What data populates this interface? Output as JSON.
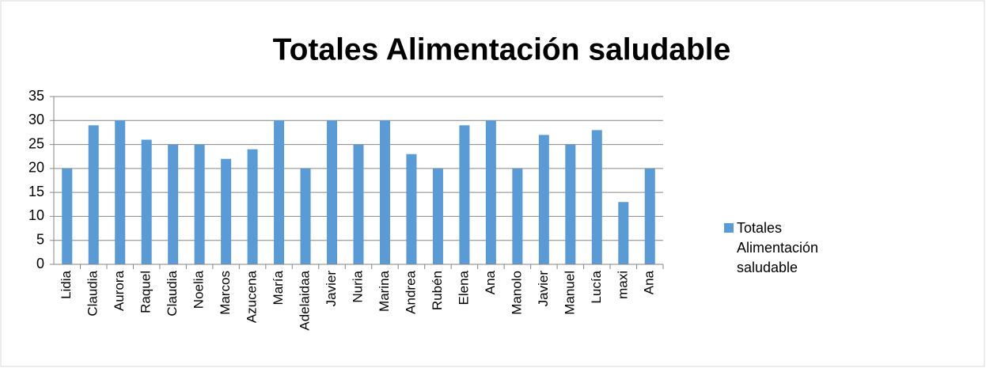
{
  "chart_data": {
    "type": "bar",
    "title": "Totales Alimentación saludable",
    "categories": [
      "Lidia",
      "Claudia",
      "Aurora",
      "Raquel",
      "Claudia",
      "Noelia",
      "Marcos",
      "Azucena",
      "María",
      "Adelaidaa",
      "Javier",
      "Nuria",
      "Marina",
      "Andrea",
      "Rubén",
      "Elena",
      "Ana",
      "Manolo",
      "Javier",
      "Manuel",
      "Lucía",
      "maxi",
      "Ana"
    ],
    "series": [
      {
        "name": "Totales Alimentación saludable",
        "color": "#5b9bd5",
        "values": [
          20,
          29,
          30,
          26,
          25,
          25,
          22,
          24,
          30,
          20,
          30,
          25,
          30,
          23,
          20,
          29,
          30,
          20,
          27,
          25,
          28,
          13,
          20
        ]
      }
    ],
    "ylim": [
      0,
      35
    ],
    "yticks": [
      0,
      5,
      10,
      15,
      20,
      25,
      30,
      35
    ],
    "grid": true,
    "legend": "right"
  }
}
